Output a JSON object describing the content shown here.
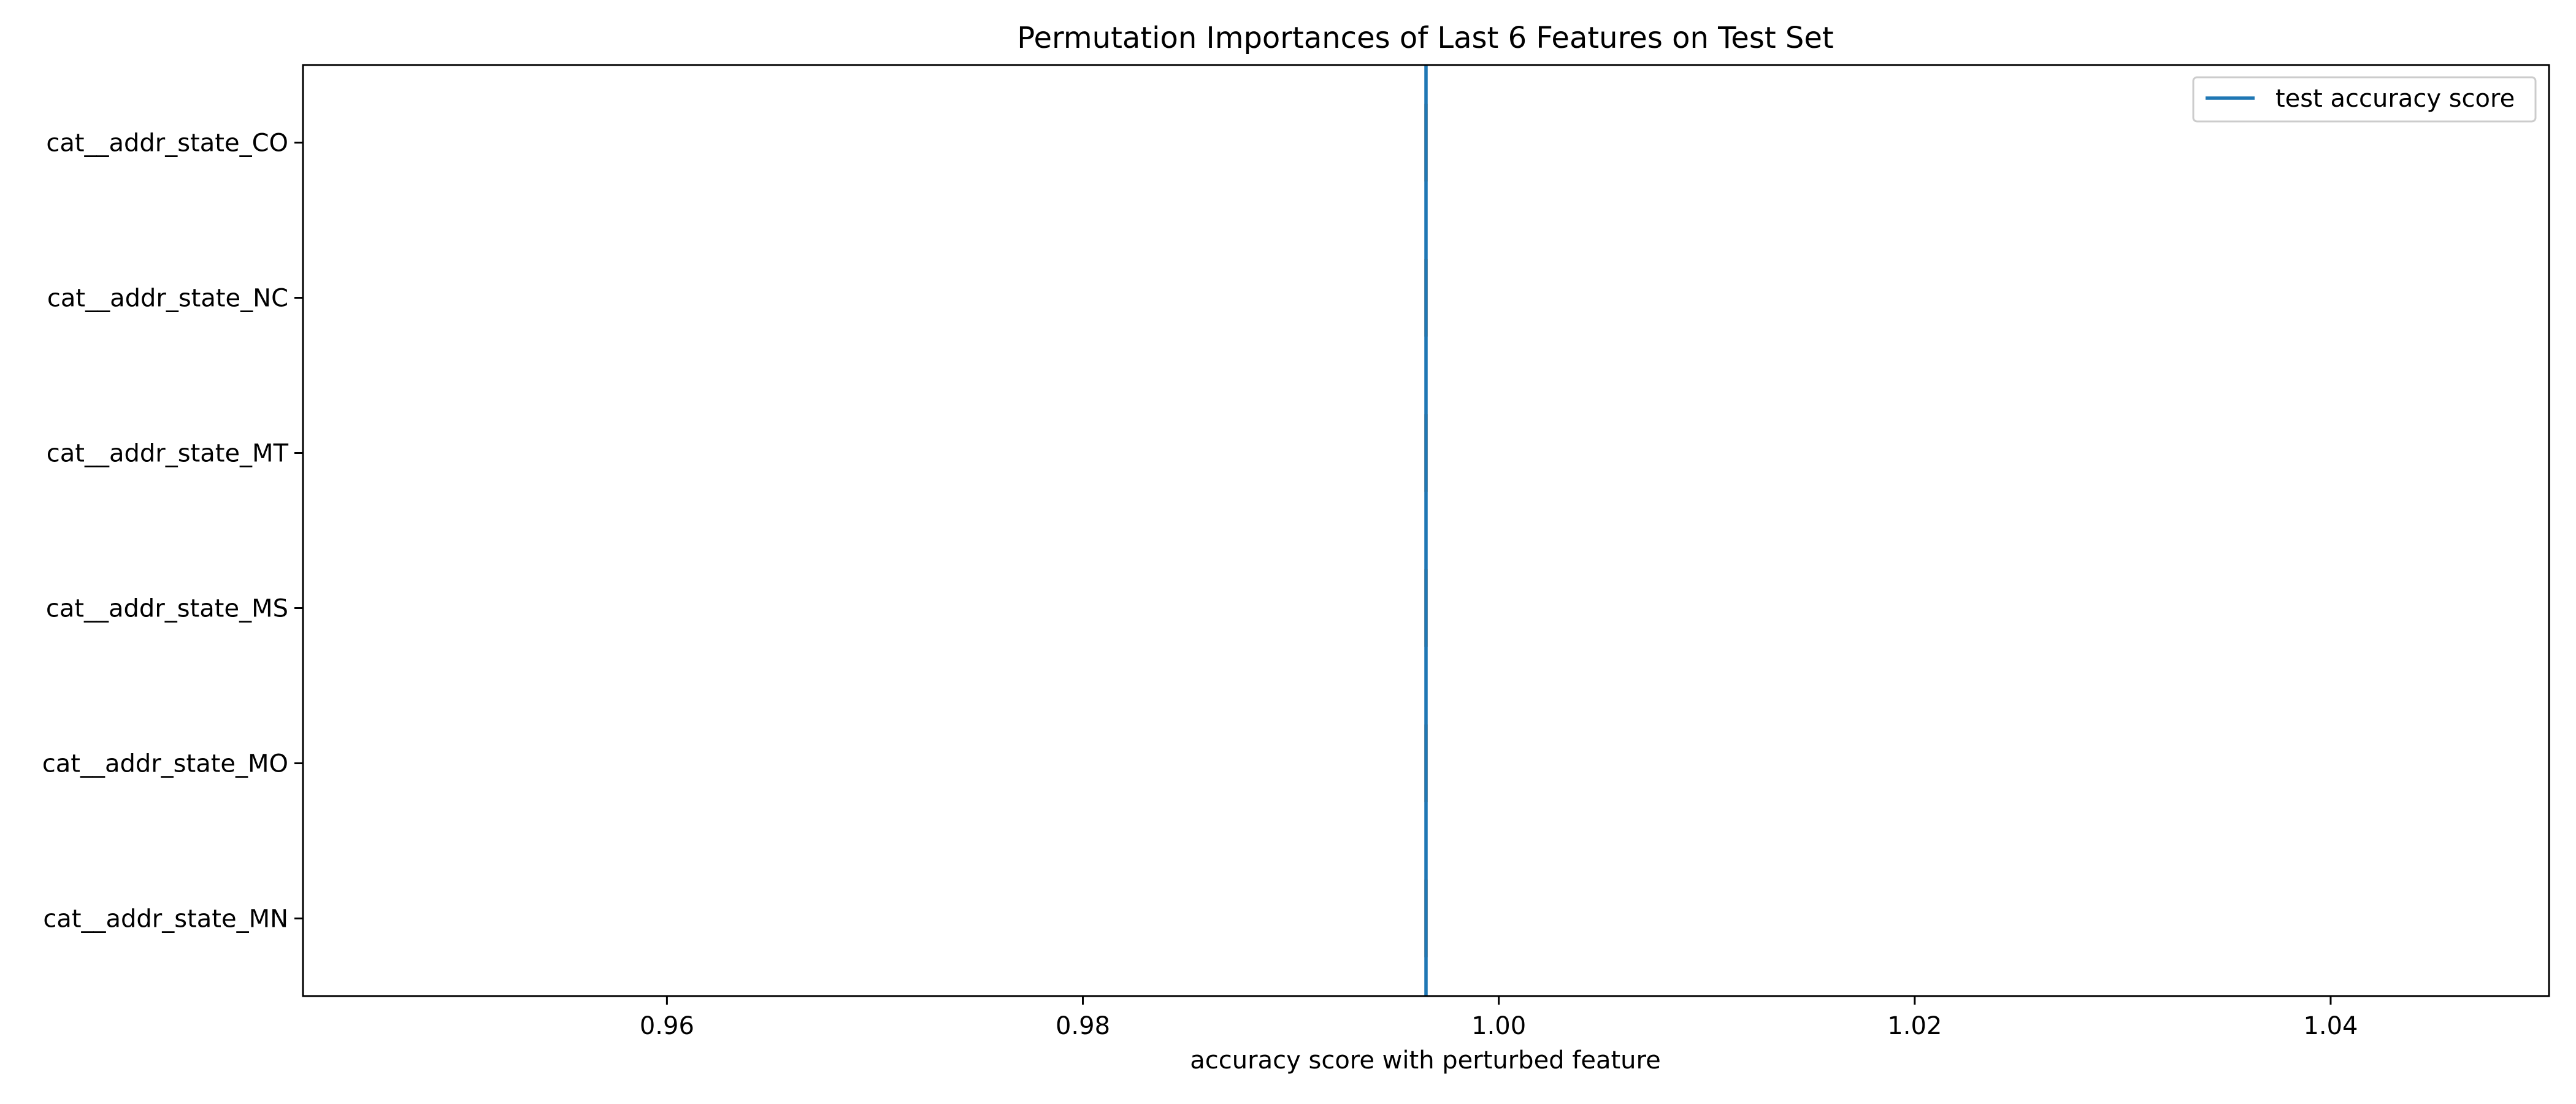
{
  "chart_data": {
    "type": "boxplot",
    "title": "Permutation Importances of Last 6 Features on Test Set",
    "xlabel": "accuracy score with perturbed feature",
    "ylabel": "",
    "xlim": [
      0.9425,
      1.0505
    ],
    "x_ticks": [
      "0.96",
      "0.98",
      "1.00",
      "1.02",
      "1.04"
    ],
    "x_tick_values": [
      0.96,
      0.98,
      1.0,
      1.02,
      1.04
    ],
    "categories": [
      "cat__addr_state_CO",
      "cat__addr_state_NC",
      "cat__addr_state_MT",
      "cat__addr_state_MS",
      "cat__addr_state_MO",
      "cat__addr_state_MN"
    ],
    "boxes": [
      {
        "feature": "cat__addr_state_CO",
        "min": 0.9965,
        "q1": 0.9965,
        "median": 0.9965,
        "q3": 0.9965,
        "max": 0.9965
      },
      {
        "feature": "cat__addr_state_NC",
        "min": 0.9965,
        "q1": 0.9965,
        "median": 0.9965,
        "q3": 0.9965,
        "max": 0.9965
      },
      {
        "feature": "cat__addr_state_MT",
        "min": 0.9965,
        "q1": 0.9965,
        "median": 0.9965,
        "q3": 0.9965,
        "max": 0.9965
      },
      {
        "feature": "cat__addr_state_MS",
        "min": 0.9965,
        "q1": 0.9965,
        "median": 0.9965,
        "q3": 0.9965,
        "max": 0.9965
      },
      {
        "feature": "cat__addr_state_MO",
        "min": 0.9965,
        "q1": 0.9965,
        "median": 0.9965,
        "q3": 0.9965,
        "max": 0.9965
      },
      {
        "feature": "cat__addr_state_MN",
        "min": 0.9965,
        "q1": 0.9965,
        "median": 0.9965,
        "q3": 0.9965,
        "max": 0.9965
      }
    ],
    "reference_line": {
      "name": "test accuracy score",
      "value": 0.9965,
      "color": "#1f77b4"
    },
    "median_color": "#ff7f0e",
    "legend": {
      "position": "top-right",
      "entries": [
        "test accuracy score"
      ]
    },
    "grid": false
  }
}
